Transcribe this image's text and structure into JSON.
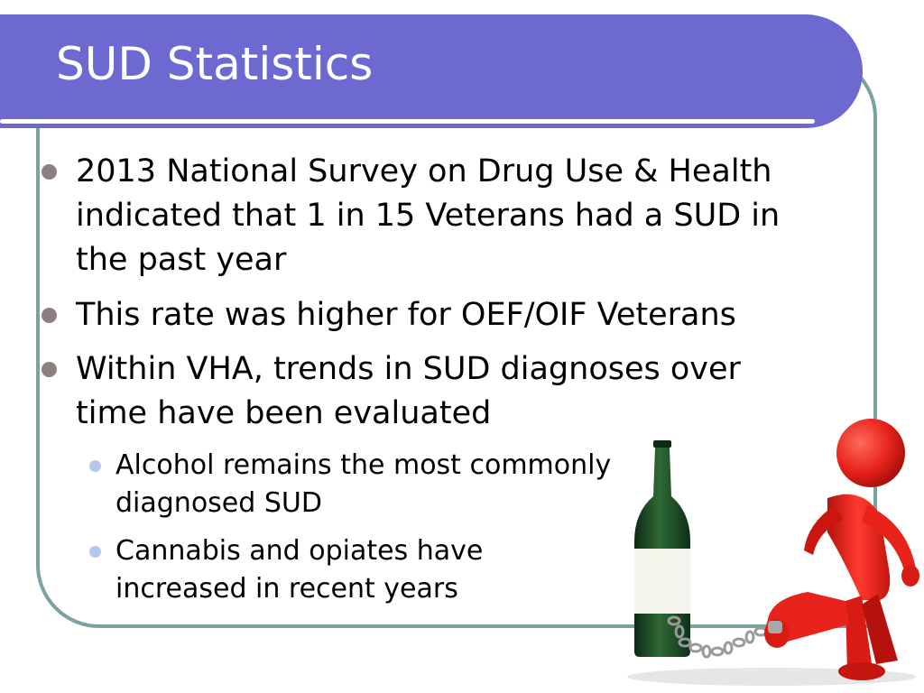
{
  "slide": {
    "title": "SUD Statistics",
    "bullets": [
      {
        "line1": "2013 National Survey on Drug Use & Health",
        "line2": "indicated that 1 in 15 Veterans had a SUD in",
        "line3": "the past year"
      },
      {
        "line1": "This rate was higher for OEF/OIF Veterans"
      },
      {
        "line1": "Within VHA, trends in SUD diagnoses over",
        "line2": "time have been evaluated"
      }
    ],
    "sub_bullets": [
      {
        "line1": "Alcohol remains the most commonly",
        "line2": "diagnosed SUD"
      },
      {
        "line1": "Cannabis and opiates have",
        "line2": "increased in recent years"
      }
    ]
  },
  "image": {
    "subject": "red-figure-chained-to-wine-bottle"
  },
  "colors": {
    "banner": "#6c6ad0",
    "frame": "#7aa3a0",
    "bullet": "#8d7f80",
    "sub_bullet": "#b4c7ec",
    "figure": "#e8231c",
    "bottle": "#1f4a26"
  }
}
